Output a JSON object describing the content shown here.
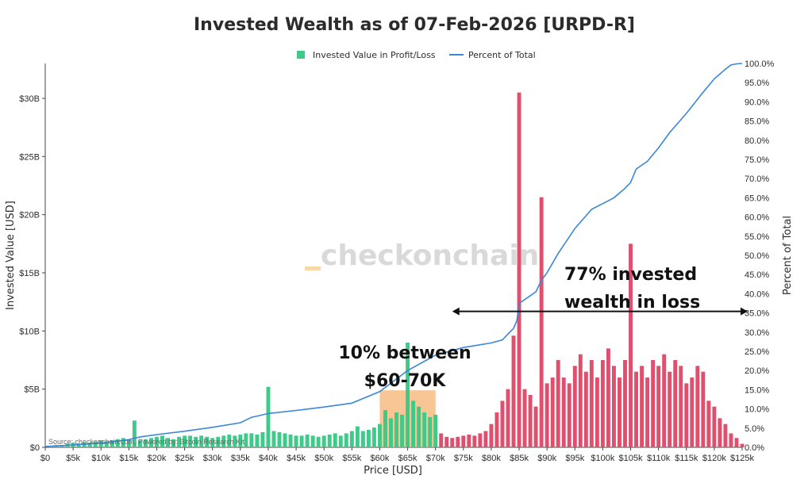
{
  "chart_data": {
    "type": "bar+line",
    "title": "Invested Wealth as of 07-Feb-2026 [URPD-R]",
    "xlabel": "Price [USD]",
    "ylabel": "Invested Value [USD]",
    "y2label": "Percent of Total",
    "xlim": [
      0,
      125000
    ],
    "ylim": [
      0,
      33
    ],
    "y2lim": [
      0,
      100
    ],
    "x_ticks": [
      "$0",
      "$5k",
      "$10k",
      "$15k",
      "$20k",
      "$25k",
      "$30k",
      "$35k",
      "$40k",
      "$45k",
      "$50k",
      "$55k",
      "$60k",
      "$65k",
      "$70k",
      "$75k",
      "$80k",
      "$85k",
      "$90k",
      "$95k",
      "$100k",
      "$105k",
      "$110k",
      "$115k",
      "$120k",
      "$125k"
    ],
    "y_ticks": [
      "$0",
      "$5B",
      "$10B",
      "$15B",
      "$20B",
      "$25B",
      "$30B"
    ],
    "y2_ticks": [
      "0.0%",
      "5.0%",
      "10.0%",
      "15.0%",
      "20.0%",
      "25.0%",
      "30.0%",
      "35.0%",
      "40.0%",
      "45.0%",
      "50.0%",
      "55.0%",
      "60.0%",
      "65.0%",
      "70.0%",
      "75.0%",
      "80.0%",
      "85.0%",
      "90.0%",
      "95.0%",
      "100.0%"
    ],
    "current_price_k": 70,
    "colors": {
      "profit": "#3ecb8a",
      "loss": "#e0506e",
      "line": "#3a86d8",
      "band": "#f5a85a",
      "arrow": "#111111"
    },
    "legend": [
      "Invested Value in Profit/Loss",
      "Percent of Total"
    ],
    "series": [
      {
        "name": "Invested Value in Profit/Loss",
        "kind": "bar",
        "note": "values in $B at price buckets in $k (approximate)",
        "x": [
          1,
          2,
          3,
          4,
          5,
          6,
          7,
          8,
          9,
          10,
          11,
          12,
          13,
          14,
          15,
          16,
          17,
          18,
          19,
          20,
          21,
          22,
          23,
          24,
          25,
          26,
          27,
          28,
          29,
          30,
          31,
          32,
          33,
          34,
          35,
          36,
          37,
          38,
          39,
          40,
          41,
          42,
          43,
          44,
          45,
          46,
          47,
          48,
          49,
          50,
          51,
          52,
          53,
          54,
          55,
          56,
          57,
          58,
          59,
          60,
          61,
          62,
          63,
          64,
          65,
          66,
          67,
          68,
          69,
          70,
          71,
          72,
          73,
          74,
          75,
          76,
          77,
          78,
          79,
          80,
          81,
          82,
          83,
          84,
          85,
          86,
          87,
          88,
          89,
          90,
          91,
          92,
          93,
          94,
          95,
          96,
          97,
          98,
          99,
          100,
          101,
          102,
          103,
          104,
          105,
          106,
          107,
          108,
          109,
          110,
          111,
          112,
          113,
          114,
          115,
          116,
          117,
          118,
          119,
          120,
          121,
          122,
          123,
          124,
          125
        ],
        "values": [
          0.1,
          0.2,
          0.2,
          0.3,
          0.4,
          0.3,
          0.4,
          0.4,
          0.5,
          0.6,
          0.5,
          0.6,
          0.7,
          0.8,
          0.7,
          2.3,
          0.6,
          0.7,
          0.8,
          0.9,
          1.0,
          0.8,
          0.7,
          0.9,
          1.0,
          1.0,
          0.9,
          1.0,
          0.9,
          0.8,
          0.9,
          1.0,
          1.1,
          1.0,
          1.1,
          1.2,
          1.2,
          1.1,
          1.3,
          5.2,
          1.4,
          1.3,
          1.2,
          1.1,
          1.0,
          1.0,
          1.1,
          1.0,
          0.9,
          1.0,
          1.1,
          1.2,
          1.0,
          1.2,
          1.4,
          1.8,
          1.4,
          1.5,
          1.7,
          2.0,
          3.2,
          2.5,
          3.0,
          2.8,
          9.0,
          4.0,
          3.5,
          3.0,
          2.6,
          2.8,
          1.2,
          0.9,
          0.8,
          0.9,
          1.0,
          1.1,
          1.0,
          1.2,
          1.4,
          2.0,
          3.0,
          4.0,
          5.0,
          9.6,
          30.5,
          5.0,
          4.5,
          3.5,
          21.5,
          5.5,
          6.0,
          7.5,
          6.0,
          5.5,
          7.0,
          8.0,
          6.5,
          7.5,
          6.0,
          7.5,
          8.5,
          7.0,
          6.0,
          7.5,
          17.5,
          6.5,
          7.0,
          6.0,
          7.5,
          7.0,
          8.0,
          6.5,
          7.5,
          7.0,
          5.5,
          6.0,
          7.0,
          6.5,
          4.0,
          3.5,
          2.5,
          2.0,
          1.2,
          0.8,
          0.3
        ]
      },
      {
        "name": "Percent of Total",
        "kind": "line",
        "x": [
          0,
          5,
          10,
          15,
          17,
          20,
          25,
          30,
          35,
          37,
          40,
          45,
          50,
          55,
          60,
          65,
          70,
          75,
          80,
          82,
          83,
          84,
          84.6,
          85,
          86,
          88,
          89,
          90,
          92,
          95,
          98,
          100,
          102,
          104,
          105,
          106,
          108,
          110,
          112,
          115,
          118,
          120,
          122,
          123,
          124,
          125
        ],
        "values": [
          0.2,
          0.6,
          1.1,
          2.0,
          2.7,
          3.3,
          4.2,
          5.2,
          6.4,
          7.8,
          8.8,
          9.6,
          10.5,
          11.5,
          14.5,
          20.0,
          24.0,
          26.0,
          27.2,
          28.0,
          29.5,
          31.0,
          33.0,
          37.5,
          38.5,
          40.5,
          43.5,
          45.5,
          50.5,
          57.0,
          62.0,
          63.5,
          65.0,
          67.5,
          69.0,
          72.5,
          74.5,
          78.0,
          82.0,
          87.0,
          92.5,
          96.0,
          98.5,
          99.6,
          99.9,
          100.0
        ]
      }
    ],
    "annotations": [
      {
        "text": "10% between",
        "line": 1
      },
      {
        "text": "$60-70K",
        "line": 2
      },
      {
        "text": "77% invested",
        "line": 1
      },
      {
        "text": "wealth in loss",
        "line": 2
      }
    ],
    "band": {
      "x0": 60,
      "x1": 70,
      "y_top": 4.9
    },
    "arrow": {
      "x0": 73,
      "x1": 126,
      "y2": 35.4
    }
  },
  "watermark": "checkonchain",
  "watermark_prefix": "_",
  "source": "Source: checkonchain.com, Powered by: Bitcoin Research Kit"
}
